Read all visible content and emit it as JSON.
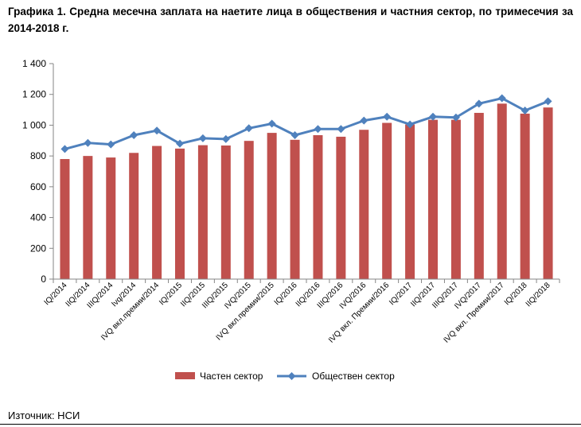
{
  "title": "Графика 1. Средна месечна заплата на наетите лица в обществения и частния сектор, по тримесечия за 2014-2018 г.",
  "source": "Източник: НСИ",
  "chart_data": {
    "type": "bar+line",
    "categories": [
      "IQ/2014",
      "IIQ/2014",
      "IIIQ/2014",
      "Ivq/2014",
      "IVQ вкл.премии/2014",
      "IQ/2015",
      "IIQ/2015",
      "IIIQ/2015",
      "IVQ/2015",
      "IVQ вкл.премии/2015",
      "IQ/2016",
      "IIQ/2016",
      "IIIQ/2016",
      "IVQ/2016",
      "IVQ вкл. Премии/2016",
      "IQ/2017",
      "IIQ/2017",
      "IIIQ/2017",
      "IVQ/2017",
      "IVQ вкл. Премии/2017",
      "IQ/2018",
      "IIQ/2018"
    ],
    "series": [
      {
        "name": "Частен сектор",
        "type": "bar",
        "color": "#c0504d",
        "values": [
          780,
          800,
          790,
          820,
          865,
          848,
          870,
          868,
          898,
          950,
          905,
          935,
          925,
          970,
          1015,
          1005,
          1035,
          1035,
          1080,
          1140,
          1075,
          1115
        ]
      },
      {
        "name": "Обществен сектор",
        "type": "line",
        "color": "#4f81bd",
        "values": [
          845,
          885,
          875,
          935,
          965,
          880,
          915,
          910,
          980,
          1010,
          935,
          975,
          975,
          1030,
          1055,
          1005,
          1055,
          1050,
          1140,
          1175,
          1095,
          1155
        ]
      }
    ],
    "ylim": [
      0,
      1400
    ],
    "yticks": [
      0,
      200,
      400,
      600,
      800,
      1000,
      1200,
      1400
    ],
    "ytick_labels": [
      "0",
      "200",
      "400",
      "600",
      "800",
      "1 000",
      "1 200",
      "1 400"
    ],
    "grid": false,
    "legend": "bottom"
  }
}
